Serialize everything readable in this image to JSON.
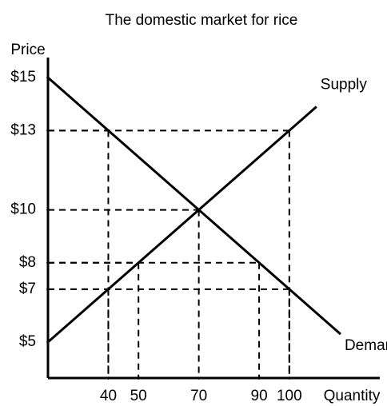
{
  "chart_data": {
    "type": "line",
    "title": "The domestic market for rice",
    "y_label": "Price",
    "x_label": "Quantity",
    "series": [
      {
        "name": "Demand",
        "color": "#000000",
        "x": [
          20,
          117
        ],
        "y": [
          15,
          5.3
        ]
      },
      {
        "name": "Supply",
        "color": "#000000",
        "x": [
          20,
          109
        ],
        "y": [
          5,
          13.9
        ]
      }
    ],
    "points": {
      "x": [
        40,
        100,
        70,
        50,
        90,
        40,
        100
      ],
      "y": [
        13,
        13,
        10,
        8,
        8,
        7,
        7
      ]
    },
    "xlim": [
      20,
      130
    ],
    "ylim": [
      3.64,
      15.76
    ],
    "xticks": [
      40,
      50,
      70,
      90,
      100
    ],
    "yticks": [
      {
        "value": 5,
        "label": "$5"
      },
      {
        "value": 7,
        "label": "$7"
      },
      {
        "value": 8,
        "label": "$8"
      },
      {
        "value": 10,
        "label": "$10"
      },
      {
        "value": 13,
        "label": "$13"
      },
      {
        "value": 15,
        "label": "$15"
      }
    ]
  }
}
